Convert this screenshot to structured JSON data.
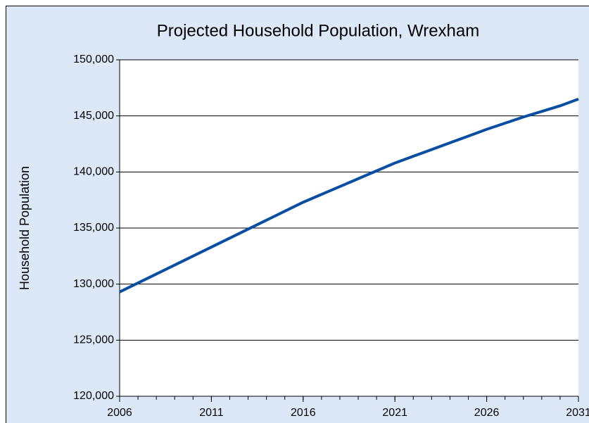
{
  "chart_data": {
    "type": "line",
    "title": "Projected Household Population, Wrexham",
    "y_label": "Household Population",
    "x": [
      2006,
      2007,
      2008,
      2009,
      2010,
      2011,
      2012,
      2013,
      2014,
      2015,
      2016,
      2017,
      2018,
      2019,
      2020,
      2021,
      2022,
      2023,
      2024,
      2025,
      2026,
      2027,
      2028,
      2029,
      2030,
      2031
    ],
    "series": [
      {
        "name": "Household Population",
        "color": "#0a4ea3",
        "values": [
          129300,
          130100,
          130900,
          131700,
          132500,
          133300,
          134100,
          134900,
          135700,
          136500,
          137300,
          138000,
          138700,
          139400,
          140100,
          140800,
          141400,
          142000,
          142600,
          143200,
          143800,
          144350,
          144900,
          145400,
          145900,
          146500
        ]
      }
    ],
    "xlim": [
      2006,
      2031
    ],
    "xticks": [
      2006,
      2011,
      2016,
      2021,
      2026,
      2031
    ],
    "ylim": [
      120000,
      150000
    ],
    "yticks": [
      {
        "value": 120000,
        "label": "120,000"
      },
      {
        "value": 125000,
        "label": "125,000"
      },
      {
        "value": 130000,
        "label": "130,000"
      },
      {
        "value": 135000,
        "label": "135,000"
      },
      {
        "value": 140000,
        "label": "140,000"
      },
      {
        "value": 145000,
        "label": "145,000"
      },
      {
        "value": 150000,
        "label": "150,000"
      }
    ],
    "grid": true
  }
}
